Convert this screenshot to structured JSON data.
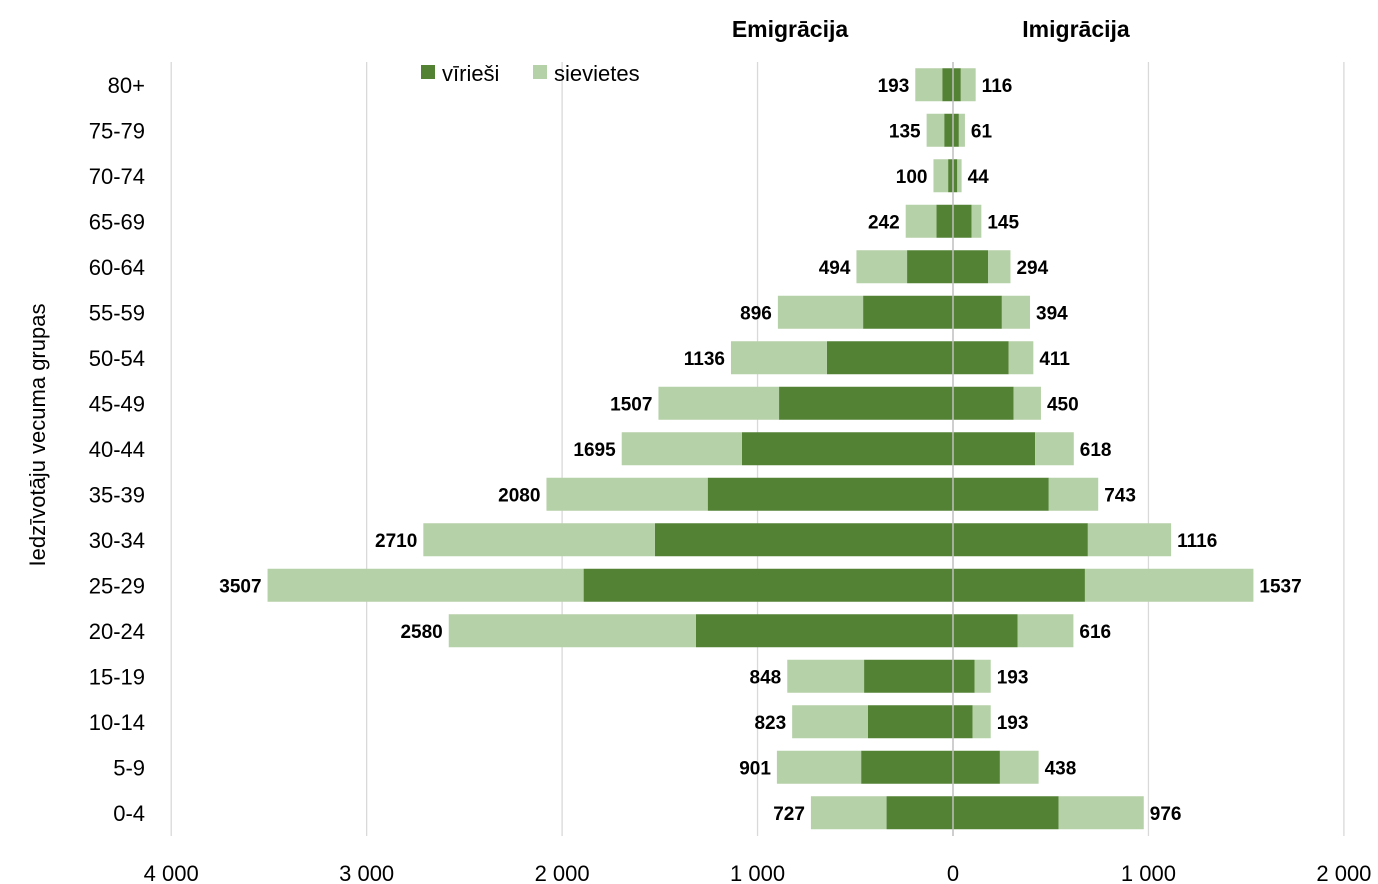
{
  "chart_data": {
    "type": "bar",
    "orientation": "horizontal-diverging",
    "ylabel": "Iedzīvotāju vecuma grupas",
    "headers": {
      "left": "Emigrācija",
      "right": "Imigrācija"
    },
    "legend": {
      "placement": "top-center",
      "entries": [
        "vīrieši",
        "sievietes"
      ]
    },
    "colors": {
      "men": "#548235",
      "women": "#b5d1a7",
      "grid": "#d9d9d9",
      "axis": "#bfbfbf"
    },
    "xlim": [
      -4000,
      2000
    ],
    "xticks": [
      -4000,
      -3000,
      -2000,
      -1000,
      0,
      1000,
      2000
    ],
    "xtick_labels": [
      "4 000",
      "3 000",
      "2 000",
      "1 000",
      "0",
      "1 000",
      "2 000"
    ],
    "grid": true,
    "categories": [
      "80+",
      "75-79",
      "70-74",
      "65-69",
      "60-64",
      "55-59",
      "50-54",
      "45-49",
      "40-44",
      "35-39",
      "30-34",
      "25-29",
      "20-24",
      "15-19",
      "10-14",
      "5-9",
      "0-4"
    ],
    "series": [
      {
        "name": "vīrieši",
        "side": "emigration",
        "values": [
          55,
          45,
          25,
          85,
          235,
          460,
          645,
          890,
          1080,
          1255,
          1525,
          1890,
          1315,
          455,
          435,
          470,
          340
        ]
      },
      {
        "name": "sievietes",
        "side": "emigration",
        "values": [
          138,
          90,
          75,
          157,
          259,
          436,
          491,
          617,
          615,
          825,
          1185,
          1617,
          1265,
          393,
          388,
          431,
          387
        ]
      },
      {
        "name": "vīrieši",
        "side": "immigration",
        "values": [
          40,
          30,
          22,
          95,
          180,
          250,
          285,
          310,
          420,
          490,
          690,
          675,
          330,
          110,
          100,
          240,
          540
        ]
      },
      {
        "name": "sievietes",
        "side": "immigration",
        "values": [
          76,
          31,
          22,
          50,
          114,
          144,
          126,
          140,
          198,
          253,
          426,
          862,
          286,
          83,
          93,
          198,
          436
        ]
      }
    ],
    "totals": {
      "emigration": [
        "193",
        "135",
        "100",
        "242",
        "494",
        "896",
        "1136",
        "1507",
        "1695",
        "2080",
        "2710",
        "3507",
        "2580",
        "848",
        "823",
        "901",
        "727"
      ],
      "immigration": [
        "116",
        "61",
        "44",
        "145",
        "294",
        "394",
        "411",
        "450",
        "618",
        "743",
        "1116",
        "1537",
        "616",
        "193",
        "193",
        "438",
        "976"
      ]
    }
  }
}
